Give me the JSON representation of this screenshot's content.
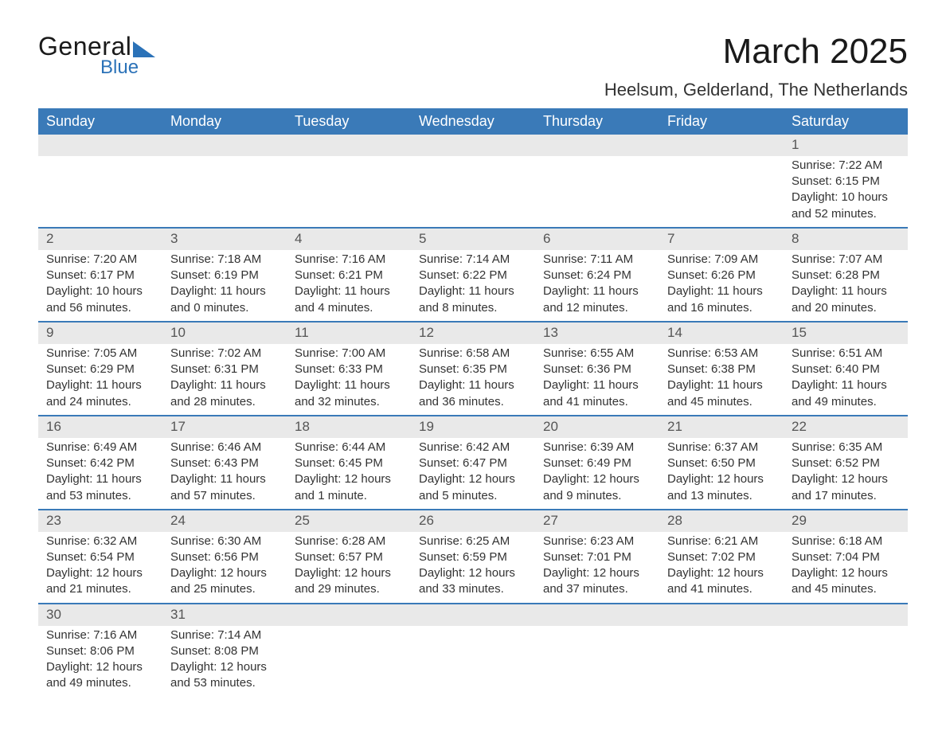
{
  "brand": {
    "general": "General",
    "blue": "Blue"
  },
  "title": {
    "month": "March 2025",
    "location": "Heelsum, Gelderland, The Netherlands"
  },
  "colors": {
    "header_bg": "#3a7ab8",
    "header_text": "#ffffff",
    "daynum_bg": "#e9e9e9",
    "row_divider": "#3a7ab8",
    "body_text": "#333333",
    "logo_accent": "#2b72b8"
  },
  "day_names": [
    "Sunday",
    "Monday",
    "Tuesday",
    "Wednesday",
    "Thursday",
    "Friday",
    "Saturday"
  ],
  "weeks": [
    {
      "nums": [
        "",
        "",
        "",
        "",
        "",
        "",
        "1"
      ],
      "cells": [
        [],
        [],
        [],
        [],
        [],
        [],
        [
          "Sunrise: 7:22 AM",
          "Sunset: 6:15 PM",
          "Daylight: 10 hours",
          "and 52 minutes."
        ]
      ]
    },
    {
      "nums": [
        "2",
        "3",
        "4",
        "5",
        "6",
        "7",
        "8"
      ],
      "cells": [
        [
          "Sunrise: 7:20 AM",
          "Sunset: 6:17 PM",
          "Daylight: 10 hours",
          "and 56 minutes."
        ],
        [
          "Sunrise: 7:18 AM",
          "Sunset: 6:19 PM",
          "Daylight: 11 hours",
          "and 0 minutes."
        ],
        [
          "Sunrise: 7:16 AM",
          "Sunset: 6:21 PM",
          "Daylight: 11 hours",
          "and 4 minutes."
        ],
        [
          "Sunrise: 7:14 AM",
          "Sunset: 6:22 PM",
          "Daylight: 11 hours",
          "and 8 minutes."
        ],
        [
          "Sunrise: 7:11 AM",
          "Sunset: 6:24 PM",
          "Daylight: 11 hours",
          "and 12 minutes."
        ],
        [
          "Sunrise: 7:09 AM",
          "Sunset: 6:26 PM",
          "Daylight: 11 hours",
          "and 16 minutes."
        ],
        [
          "Sunrise: 7:07 AM",
          "Sunset: 6:28 PM",
          "Daylight: 11 hours",
          "and 20 minutes."
        ]
      ]
    },
    {
      "nums": [
        "9",
        "10",
        "11",
        "12",
        "13",
        "14",
        "15"
      ],
      "cells": [
        [
          "Sunrise: 7:05 AM",
          "Sunset: 6:29 PM",
          "Daylight: 11 hours",
          "and 24 minutes."
        ],
        [
          "Sunrise: 7:02 AM",
          "Sunset: 6:31 PM",
          "Daylight: 11 hours",
          "and 28 minutes."
        ],
        [
          "Sunrise: 7:00 AM",
          "Sunset: 6:33 PM",
          "Daylight: 11 hours",
          "and 32 minutes."
        ],
        [
          "Sunrise: 6:58 AM",
          "Sunset: 6:35 PM",
          "Daylight: 11 hours",
          "and 36 minutes."
        ],
        [
          "Sunrise: 6:55 AM",
          "Sunset: 6:36 PM",
          "Daylight: 11 hours",
          "and 41 minutes."
        ],
        [
          "Sunrise: 6:53 AM",
          "Sunset: 6:38 PM",
          "Daylight: 11 hours",
          "and 45 minutes."
        ],
        [
          "Sunrise: 6:51 AM",
          "Sunset: 6:40 PM",
          "Daylight: 11 hours",
          "and 49 minutes."
        ]
      ]
    },
    {
      "nums": [
        "16",
        "17",
        "18",
        "19",
        "20",
        "21",
        "22"
      ],
      "cells": [
        [
          "Sunrise: 6:49 AM",
          "Sunset: 6:42 PM",
          "Daylight: 11 hours",
          "and 53 minutes."
        ],
        [
          "Sunrise: 6:46 AM",
          "Sunset: 6:43 PM",
          "Daylight: 11 hours",
          "and 57 minutes."
        ],
        [
          "Sunrise: 6:44 AM",
          "Sunset: 6:45 PM",
          "Daylight: 12 hours",
          "and 1 minute."
        ],
        [
          "Sunrise: 6:42 AM",
          "Sunset: 6:47 PM",
          "Daylight: 12 hours",
          "and 5 minutes."
        ],
        [
          "Sunrise: 6:39 AM",
          "Sunset: 6:49 PM",
          "Daylight: 12 hours",
          "and 9 minutes."
        ],
        [
          "Sunrise: 6:37 AM",
          "Sunset: 6:50 PM",
          "Daylight: 12 hours",
          "and 13 minutes."
        ],
        [
          "Sunrise: 6:35 AM",
          "Sunset: 6:52 PM",
          "Daylight: 12 hours",
          "and 17 minutes."
        ]
      ]
    },
    {
      "nums": [
        "23",
        "24",
        "25",
        "26",
        "27",
        "28",
        "29"
      ],
      "cells": [
        [
          "Sunrise: 6:32 AM",
          "Sunset: 6:54 PM",
          "Daylight: 12 hours",
          "and 21 minutes."
        ],
        [
          "Sunrise: 6:30 AM",
          "Sunset: 6:56 PM",
          "Daylight: 12 hours",
          "and 25 minutes."
        ],
        [
          "Sunrise: 6:28 AM",
          "Sunset: 6:57 PM",
          "Daylight: 12 hours",
          "and 29 minutes."
        ],
        [
          "Sunrise: 6:25 AM",
          "Sunset: 6:59 PM",
          "Daylight: 12 hours",
          "and 33 minutes."
        ],
        [
          "Sunrise: 6:23 AM",
          "Sunset: 7:01 PM",
          "Daylight: 12 hours",
          "and 37 minutes."
        ],
        [
          "Sunrise: 6:21 AM",
          "Sunset: 7:02 PM",
          "Daylight: 12 hours",
          "and 41 minutes."
        ],
        [
          "Sunrise: 6:18 AM",
          "Sunset: 7:04 PM",
          "Daylight: 12 hours",
          "and 45 minutes."
        ]
      ]
    },
    {
      "nums": [
        "30",
        "31",
        "",
        "",
        "",
        "",
        ""
      ],
      "cells": [
        [
          "Sunrise: 7:16 AM",
          "Sunset: 8:06 PM",
          "Daylight: 12 hours",
          "and 49 minutes."
        ],
        [
          "Sunrise: 7:14 AM",
          "Sunset: 8:08 PM",
          "Daylight: 12 hours",
          "and 53 minutes."
        ],
        [],
        [],
        [],
        [],
        []
      ]
    }
  ]
}
